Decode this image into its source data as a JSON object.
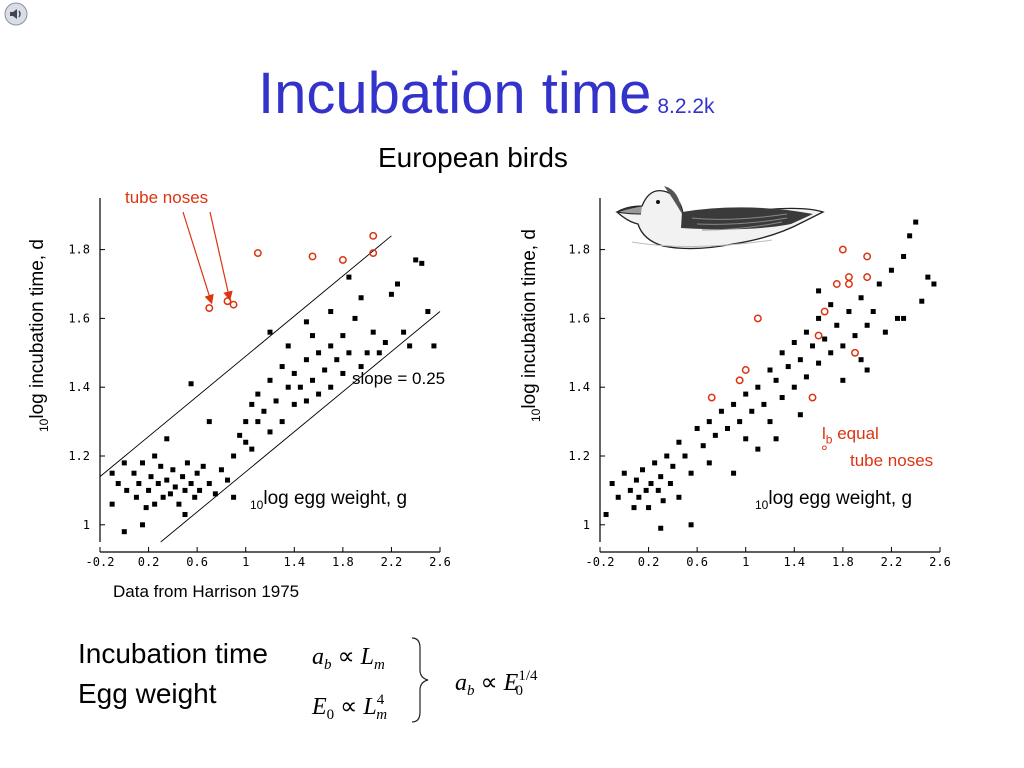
{
  "slide": {
    "title": "Incubation time",
    "title_version": "8.2.2k",
    "subtitle": "European birds",
    "source": "Data from Harrison 1975",
    "speaker_icon": "speaker-icon",
    "title_color": "#3333cc",
    "annotation_color": "#dd3311"
  },
  "equations": {
    "left_label_1": "Incubation time",
    "left_label_2": "Egg weight",
    "eq1": {
      "lhs": "a",
      "lhs_sub": "b",
      "rel": "∝",
      "rhs": "L",
      "rhs_sub": "m"
    },
    "eq2": {
      "lhs": "E",
      "lhs_sub": "0",
      "rel": "∝",
      "rhs": "L",
      "rhs_sub": "m",
      "rhs_sup": "4"
    },
    "eq3": {
      "lhs": "a",
      "lhs_sub": "b",
      "rel": "∝",
      "rhs": "E",
      "rhs_sub": "0",
      "rhs_sup": "1/4"
    }
  },
  "chart_data": [
    {
      "type": "scatter",
      "ylabel_prefix": "10",
      "ylabel": "log incubation time, d",
      "xlabel_prefix": "10",
      "xlabel": "log egg weight, g",
      "xlim": [
        -0.2,
        2.6
      ],
      "ylim": [
        0.95,
        1.95
      ],
      "xticks": [
        "-0.2",
        "0.2",
        "0.6",
        "1",
        "1.4",
        "1.8",
        "2.2",
        "2.6"
      ],
      "yticks": [
        "1",
        "1.2",
        "1.4",
        "1.6",
        "1.8"
      ],
      "annotations": {
        "tube_noses": "tube noses",
        "slope": "slope = 0.25"
      },
      "tube_noses_points": [
        [
          0.7,
          1.63
        ],
        [
          0.85,
          1.65
        ],
        [
          0.9,
          1.64
        ],
        [
          1.1,
          1.79
        ],
        [
          1.55,
          1.78
        ],
        [
          1.8,
          1.77
        ],
        [
          2.05,
          1.79
        ],
        [
          2.05,
          1.84
        ]
      ],
      "bounding_lines": [
        {
          "x": [
            -0.2,
            2.2
          ],
          "y": [
            1.14,
            1.84
          ]
        },
        {
          "x": [
            0.3,
            2.6
          ],
          "y": [
            0.95,
            1.62
          ]
        }
      ],
      "series": [
        {
          "points": [
            [
              -0.1,
              1.15
            ],
            [
              -0.05,
              1.12
            ],
            [
              0.0,
              1.18
            ],
            [
              0.02,
              1.1
            ],
            [
              0.08,
              1.15
            ],
            [
              0.1,
              1.08
            ],
            [
              0.12,
              1.12
            ],
            [
              0.15,
              1.18
            ],
            [
              0.18,
              1.05
            ],
            [
              0.2,
              1.1
            ],
            [
              0.22,
              1.14
            ],
            [
              0.25,
              1.06
            ],
            [
              0.28,
              1.12
            ],
            [
              0.3,
              1.17
            ],
            [
              0.32,
              1.08
            ],
            [
              0.35,
              1.13
            ],
            [
              0.38,
              1.09
            ],
            [
              0.4,
              1.16
            ],
            [
              0.42,
              1.11
            ],
            [
              0.45,
              1.06
            ],
            [
              0.48,
              1.14
            ],
            [
              0.5,
              1.1
            ],
            [
              0.52,
              1.18
            ],
            [
              0.55,
              1.12
            ],
            [
              0.58,
              1.08
            ],
            [
              0.6,
              1.15
            ],
            [
              0.62,
              1.1
            ],
            [
              0.65,
              1.17
            ],
            [
              0.7,
              1.12
            ],
            [
              0.75,
              1.09
            ],
            [
              0.8,
              1.16
            ],
            [
              0.85,
              1.13
            ],
            [
              0.9,
              1.2
            ],
            [
              0.95,
              1.26
            ],
            [
              1.0,
              1.3
            ],
            [
              1.0,
              1.24
            ],
            [
              1.05,
              1.35
            ],
            [
              1.05,
              1.22
            ],
            [
              1.1,
              1.3
            ],
            [
              1.1,
              1.38
            ],
            [
              1.15,
              1.33
            ],
            [
              1.2,
              1.27
            ],
            [
              1.2,
              1.42
            ],
            [
              1.25,
              1.36
            ],
            [
              1.3,
              1.3
            ],
            [
              1.3,
              1.46
            ],
            [
              1.35,
              1.4
            ],
            [
              1.35,
              1.52
            ],
            [
              1.4,
              1.35
            ],
            [
              1.4,
              1.44
            ],
            [
              1.45,
              1.4
            ],
            [
              1.5,
              1.36
            ],
            [
              1.5,
              1.48
            ],
            [
              1.55,
              1.42
            ],
            [
              1.55,
              1.55
            ],
            [
              1.6,
              1.38
            ],
            [
              1.6,
              1.5
            ],
            [
              1.65,
              1.45
            ],
            [
              1.7,
              1.4
            ],
            [
              1.7,
              1.52
            ],
            [
              1.75,
              1.48
            ],
            [
              1.8,
              1.55
            ],
            [
              1.8,
              1.44
            ],
            [
              1.85,
              1.5
            ],
            [
              1.9,
              1.6
            ],
            [
              1.95,
              1.46
            ],
            [
              2.0,
              1.5
            ],
            [
              2.05,
              1.56
            ],
            [
              2.1,
              1.5
            ],
            [
              2.15,
              1.53
            ],
            [
              2.2,
              1.67
            ],
            [
              2.25,
              1.7
            ],
            [
              2.3,
              1.56
            ],
            [
              2.35,
              1.52
            ],
            [
              2.4,
              1.77
            ],
            [
              2.45,
              1.76
            ],
            [
              2.5,
              1.62
            ],
            [
              0.55,
              1.41
            ],
            [
              0.35,
              1.25
            ],
            [
              0.25,
              1.2
            ],
            [
              0.7,
              1.3
            ],
            [
              1.2,
              1.56
            ],
            [
              1.5,
              1.59
            ],
            [
              1.95,
              1.66
            ],
            [
              1.7,
              1.62
            ],
            [
              1.85,
              1.72
            ],
            [
              0.0,
              0.98
            ],
            [
              0.15,
              1.0
            ],
            [
              -0.1,
              1.06
            ],
            [
              2.55,
              1.52
            ],
            [
              0.5,
              1.03
            ],
            [
              0.9,
              1.08
            ]
          ]
        }
      ]
    },
    {
      "type": "scatter",
      "ylabel_prefix": "10",
      "ylabel": "log incubation time, d",
      "xlabel_prefix": "10",
      "xlabel": "log egg weight, g",
      "xlim": [
        -0.2,
        2.6
      ],
      "ylim": [
        0.95,
        1.95
      ],
      "xticks": [
        "-0.2",
        "0.2",
        "0.6",
        "1",
        "1.4",
        "1.8",
        "2.2",
        "2.6"
      ],
      "yticks": [
        "1",
        "1.2",
        "1.4",
        "1.6",
        "1.8"
      ],
      "annotations": {
        "equal_sym": "l",
        "equal_sub": "b",
        "equal_circle": "°",
        "equal": "equal",
        "tube_noses": "tube noses"
      },
      "tube_noses_points": [
        [
          0.72,
          1.37
        ],
        [
          0.95,
          1.42
        ],
        [
          1.0,
          1.45
        ],
        [
          1.1,
          1.6
        ],
        [
          1.55,
          1.37
        ],
        [
          1.6,
          1.55
        ],
        [
          1.65,
          1.62
        ],
        [
          1.75,
          1.7
        ],
        [
          1.85,
          1.7
        ],
        [
          1.8,
          1.8
        ],
        [
          1.85,
          1.72
        ],
        [
          2.0,
          1.72
        ],
        [
          2.0,
          1.78
        ],
        [
          1.9,
          1.5
        ]
      ],
      "series": [
        {
          "points": [
            [
              -0.1,
              1.12
            ],
            [
              -0.05,
              1.08
            ],
            [
              0.0,
              1.15
            ],
            [
              0.05,
              1.1
            ],
            [
              0.08,
              1.05
            ],
            [
              0.1,
              1.13
            ],
            [
              0.12,
              1.08
            ],
            [
              0.15,
              1.16
            ],
            [
              0.18,
              1.1
            ],
            [
              0.2,
              1.05
            ],
            [
              0.22,
              1.12
            ],
            [
              0.25,
              1.18
            ],
            [
              0.28,
              1.1
            ],
            [
              0.3,
              1.14
            ],
            [
              0.32,
              1.07
            ],
            [
              0.35,
              1.2
            ],
            [
              0.38,
              1.12
            ],
            [
              0.4,
              1.17
            ],
            [
              0.45,
              1.24
            ],
            [
              0.5,
              1.2
            ],
            [
              0.55,
              1.15
            ],
            [
              0.6,
              1.28
            ],
            [
              0.65,
              1.23
            ],
            [
              0.7,
              1.3
            ],
            [
              0.75,
              1.26
            ],
            [
              0.8,
              1.33
            ],
            [
              0.85,
              1.28
            ],
            [
              0.9,
              1.35
            ],
            [
              0.95,
              1.3
            ],
            [
              1.0,
              1.38
            ],
            [
              1.0,
              1.25
            ],
            [
              1.05,
              1.33
            ],
            [
              1.1,
              1.4
            ],
            [
              1.15,
              1.35
            ],
            [
              1.2,
              1.45
            ],
            [
              1.2,
              1.3
            ],
            [
              1.25,
              1.42
            ],
            [
              1.3,
              1.5
            ],
            [
              1.3,
              1.37
            ],
            [
              1.35,
              1.46
            ],
            [
              1.4,
              1.53
            ],
            [
              1.4,
              1.4
            ],
            [
              1.45,
              1.48
            ],
            [
              1.5,
              1.56
            ],
            [
              1.5,
              1.43
            ],
            [
              1.55,
              1.52
            ],
            [
              1.6,
              1.47
            ],
            [
              1.6,
              1.6
            ],
            [
              1.65,
              1.54
            ],
            [
              1.7,
              1.5
            ],
            [
              1.7,
              1.64
            ],
            [
              1.75,
              1.58
            ],
            [
              1.8,
              1.52
            ],
            [
              1.85,
              1.62
            ],
            [
              1.9,
              1.55
            ],
            [
              1.95,
              1.66
            ],
            [
              2.0,
              1.58
            ],
            [
              2.05,
              1.62
            ],
            [
              2.1,
              1.7
            ],
            [
              2.15,
              1.56
            ],
            [
              2.2,
              1.74
            ],
            [
              2.25,
              1.6
            ],
            [
              2.3,
              1.78
            ],
            [
              2.35,
              1.84
            ],
            [
              2.4,
              1.88
            ],
            [
              2.45,
              1.65
            ],
            [
              2.5,
              1.72
            ],
            [
              1.95,
              1.48
            ],
            [
              1.8,
              1.42
            ],
            [
              1.45,
              1.32
            ],
            [
              1.1,
              1.22
            ],
            [
              0.7,
              1.18
            ],
            [
              -0.15,
              1.03
            ],
            [
              0.3,
              0.99
            ],
            [
              0.55,
              1.0
            ],
            [
              2.55,
              1.7
            ],
            [
              2.0,
              1.45
            ],
            [
              1.6,
              1.68
            ],
            [
              2.3,
              1.6
            ],
            [
              0.9,
              1.15
            ],
            [
              1.25,
              1.25
            ],
            [
              0.45,
              1.08
            ]
          ]
        }
      ]
    }
  ]
}
